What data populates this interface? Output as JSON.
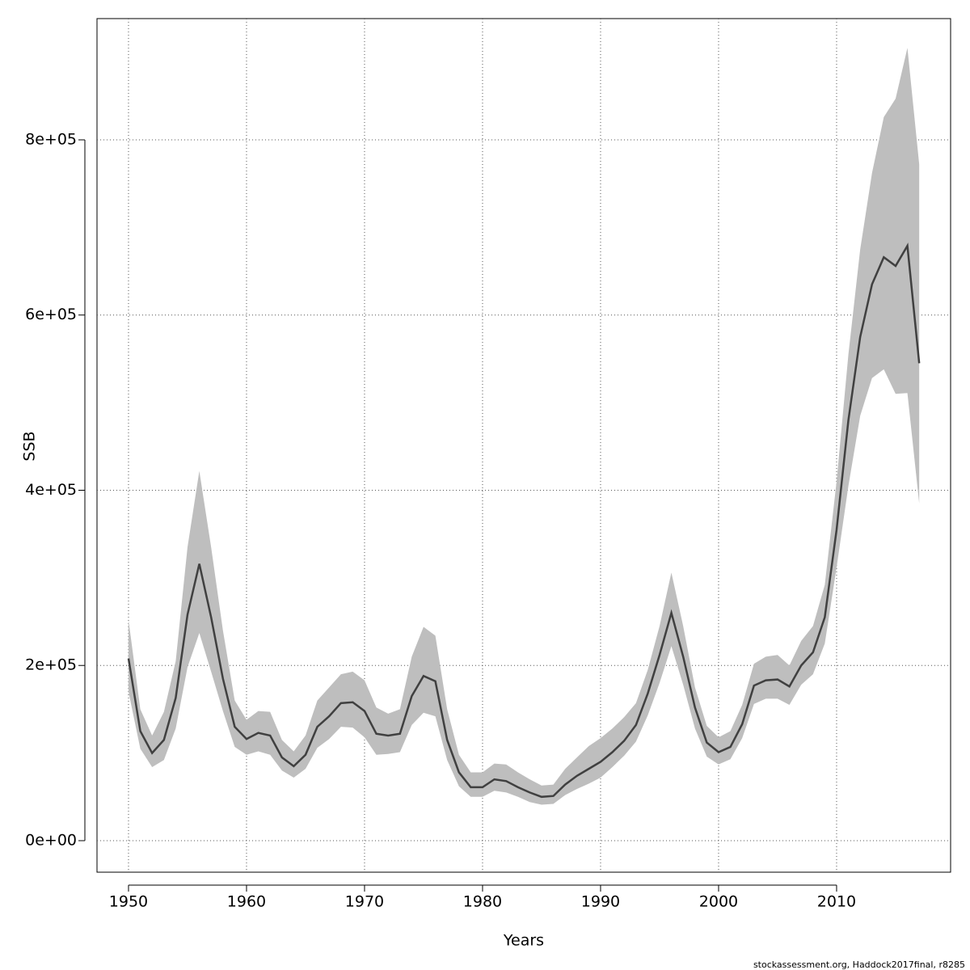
{
  "chart_data": {
    "type": "line",
    "xlabel": "Years",
    "ylabel": "SSB",
    "footnote": "stockassessment.org, Haddock2017final, r8285",
    "x": [
      1950,
      1951,
      1952,
      1953,
      1954,
      1955,
      1956,
      1957,
      1958,
      1959,
      1960,
      1961,
      1962,
      1963,
      1964,
      1965,
      1966,
      1967,
      1968,
      1969,
      1970,
      1971,
      1972,
      1973,
      1974,
      1975,
      1976,
      1977,
      1978,
      1979,
      1980,
      1981,
      1982,
      1983,
      1984,
      1985,
      1986,
      1987,
      1988,
      1989,
      1990,
      1991,
      1992,
      1993,
      1994,
      1995,
      1996,
      1997,
      1998,
      1999,
      2000,
      2001,
      2002,
      2003,
      2004,
      2005,
      2006,
      2007,
      2008,
      2009,
      2010,
      2011,
      2012,
      2013,
      2014,
      2015,
      2016,
      2017
    ],
    "values": [
      208000,
      125000,
      100000,
      115000,
      163000,
      258000,
      316000,
      255000,
      185000,
      130000,
      116000,
      123000,
      120000,
      95000,
      85000,
      98000,
      130000,
      142000,
      157000,
      158000,
      148000,
      122000,
      120000,
      122000,
      165000,
      188000,
      182000,
      115000,
      78000,
      61000,
      61000,
      70000,
      68000,
      61000,
      55000,
      50000,
      51000,
      64000,
      74000,
      82000,
      90000,
      101000,
      114000,
      132000,
      168000,
      212000,
      260000,
      210000,
      152000,
      112000,
      101000,
      107000,
      133000,
      177000,
      183000,
      184000,
      176000,
      200000,
      215000,
      255000,
      355000,
      480000,
      575000,
      635000,
      666000,
      656000,
      679000,
      545000
    ],
    "lower": [
      170000,
      105000,
      84000,
      92000,
      128000,
      198000,
      237000,
      193000,
      148000,
      107000,
      98000,
      102000,
      98000,
      80000,
      72000,
      82000,
      106000,
      116000,
      130000,
      129000,
      118000,
      98000,
      99000,
      101000,
      132000,
      146000,
      142000,
      92000,
      62000,
      50000,
      50000,
      57000,
      55000,
      50000,
      44000,
      41000,
      42000,
      52000,
      59000,
      65000,
      72000,
      84000,
      97000,
      113000,
      143000,
      180000,
      222000,
      178000,
      128000,
      96000,
      87000,
      93000,
      117000,
      156000,
      162000,
      162000,
      155000,
      178000,
      190000,
      225000,
      312000,
      405000,
      485000,
      528000,
      538000,
      510000,
      511000,
      385000
    ],
    "upper": [
      252000,
      150000,
      120000,
      147000,
      205000,
      335000,
      422000,
      335000,
      240000,
      160000,
      138000,
      148000,
      147000,
      115000,
      102000,
      120000,
      160000,
      175000,
      190000,
      193000,
      183000,
      152000,
      145000,
      150000,
      210000,
      244000,
      234000,
      150000,
      98000,
      78000,
      78000,
      88000,
      87000,
      78000,
      70000,
      63000,
      64000,
      82000,
      95000,
      108000,
      117000,
      128000,
      141000,
      157000,
      195000,
      245000,
      306000,
      245000,
      175000,
      131000,
      118000,
      125000,
      155000,
      202000,
      210000,
      212000,
      200000,
      228000,
      245000,
      292000,
      410000,
      555000,
      675000,
      762000,
      826000,
      847000,
      905000,
      772000
    ],
    "color": "#404040",
    "band_color": "#bebebe",
    "grid": true,
    "xlim": [
      1947.33,
      2019.66
    ],
    "xticks": [
      1950,
      1960,
      1970,
      1980,
      1990,
      2000,
      2010
    ],
    "ylim": [
      -36000,
      938400
    ],
    "yticks": [
      {
        "value": 0,
        "label": "0e+00"
      },
      {
        "value": 200000,
        "label": "2e+05"
      },
      {
        "value": 400000,
        "label": "4e+05"
      },
      {
        "value": 600000,
        "label": "6e+05"
      },
      {
        "value": 800000,
        "label": "8e+05"
      }
    ]
  }
}
